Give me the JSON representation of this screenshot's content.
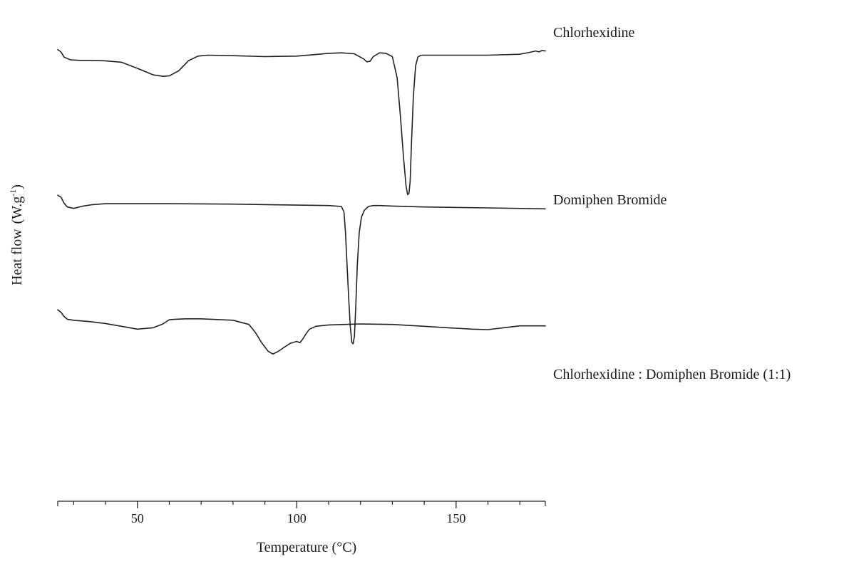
{
  "chart_data": {
    "type": "line",
    "title": "",
    "xlabel": "Temperature (°C)",
    "ylabel": "Heat flow",
    "ylabel_unit": "(W.g",
    "ylabel_exp": "-1",
    "ylabel_close": ")",
    "xlim": [
      25,
      178
    ],
    "ylim": [
      0,
      100
    ],
    "x_ticks": [
      50,
      100,
      150
    ],
    "x_tick_labels": [
      "50",
      "100",
      "150"
    ],
    "y_ticks_shown": false,
    "grid": false,
    "legend": "none",
    "line_color": "#222222",
    "series": [
      {
        "name": "Chlorhexidine",
        "x": [
          25,
          26,
          27,
          29,
          32,
          35,
          40,
          45,
          50,
          55,
          58,
          60,
          63,
          66,
          69,
          72,
          80,
          90,
          100,
          105,
          110,
          114,
          118,
          121,
          122,
          123,
          124,
          126,
          128,
          130,
          131.5,
          132.5,
          133.5,
          134.3,
          134.8,
          135.2,
          135.6,
          136,
          136.6,
          137.3,
          138,
          139,
          140,
          145,
          150,
          160,
          170,
          173,
          175,
          176,
          177,
          178
        ],
        "y": [
          94,
          93.5,
          92.4,
          91.8,
          91.7,
          91.7,
          91.6,
          91.3,
          90,
          88.6,
          88.3,
          88.4,
          89.5,
          91.6,
          92.6,
          92.8,
          92.7,
          92.5,
          92.6,
          92.9,
          93.2,
          93.3,
          93.1,
          92,
          91.4,
          91.5,
          92.5,
          93.3,
          93.2,
          92.5,
          88,
          80,
          71,
          65,
          63.1,
          63.4,
          66,
          74,
          84,
          90.5,
          92.4,
          92.8,
          92.8,
          92.8,
          92.8,
          92.8,
          93,
          93.4,
          93.7,
          93.5,
          93.8,
          93.7
        ]
      },
      {
        "name": "Domiphen Bromide",
        "x": [
          25,
          26,
          27,
          28,
          30,
          33,
          36,
          40,
          60,
          80,
          100,
          110,
          114,
          114.8,
          115.3,
          115.8,
          116.3,
          116.8,
          117.3,
          117.7,
          118.1,
          118.5,
          119,
          119.6,
          120.3,
          121.2,
          122.5,
          124,
          126,
          130,
          140,
          160,
          178
        ],
        "y": [
          63,
          62.6,
          61.3,
          60.5,
          60.2,
          60.7,
          61,
          61.2,
          61.2,
          61.1,
          60.9,
          60.8,
          60.6,
          59.5,
          55,
          48,
          41,
          35,
          31.7,
          31.4,
          33,
          39,
          48,
          55,
          58.3,
          59.8,
          60.6,
          60.8,
          60.8,
          60.7,
          60.5,
          60.3,
          60.1
        ]
      },
      {
        "name": "Chlorhexidine : Domiphen Bromide (1:1)",
        "x": [
          25,
          26,
          27,
          28,
          30,
          35,
          40,
          45,
          50,
          55,
          58,
          60,
          62,
          65,
          70,
          80,
          85,
          87,
          89,
          91,
          92.5,
          94,
          96,
          98,
          100,
          101,
          102,
          103,
          104,
          106,
          110,
          115,
          120,
          130,
          140,
          150,
          155,
          160,
          165,
          170,
          178
        ],
        "y": [
          38.6,
          38.1,
          37.2,
          36.6,
          36.4,
          36.1,
          35.7,
          35.1,
          34.5,
          34.8,
          35.6,
          36.5,
          36.6,
          36.7,
          36.7,
          36.4,
          35.5,
          33.8,
          31.6,
          29.8,
          29.2,
          29.7,
          30.6,
          31.5,
          31.9,
          31.6,
          32.5,
          33.6,
          34.5,
          35.1,
          35.4,
          35.5,
          35.6,
          35.5,
          35.1,
          34.7,
          34.5,
          34.4,
          34.8,
          35.2,
          35.2
        ]
      }
    ]
  }
}
